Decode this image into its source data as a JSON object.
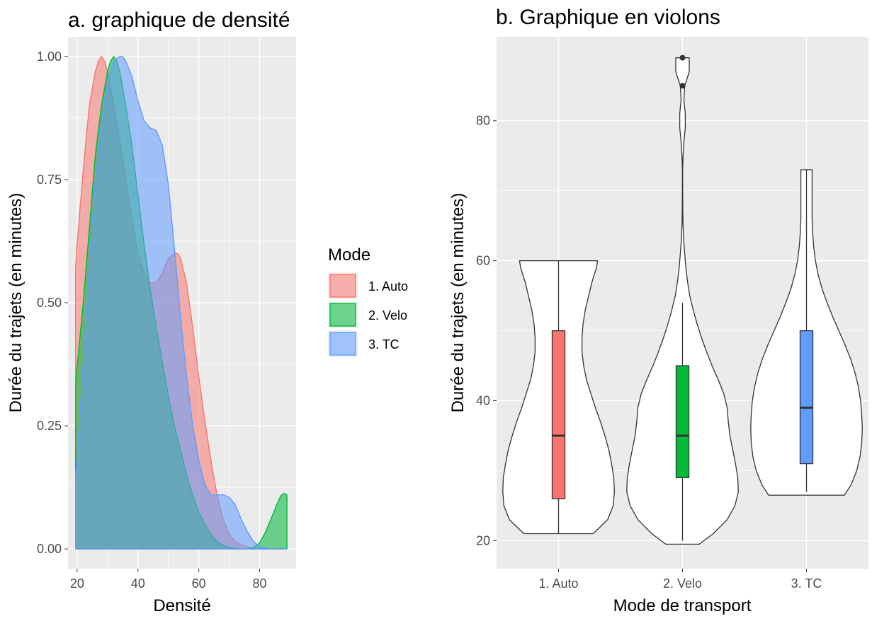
{
  "chart_data": [
    {
      "type": "area",
      "title": "a. graphique de densité",
      "xlabel": "Densité",
      "ylabel": "Durée du trajets (en minutes)",
      "xlim": [
        17,
        92
      ],
      "ylim": [
        -0.04,
        1.04
      ],
      "xticks": [
        20,
        40,
        60,
        80
      ],
      "yticks": [
        0.0,
        0.25,
        0.5,
        0.75,
        1.0
      ],
      "ytick_labels": [
        "0.00",
        "0.25",
        "0.50",
        "0.75",
        "1.00"
      ],
      "grid": true,
      "legend": {
        "title": "Mode",
        "placement": "right",
        "entries": [
          "1. Auto",
          "2. Velo",
          "3. TC"
        ]
      },
      "series": [
        {
          "name": "1. Auto",
          "color": "#F8766D",
          "x": [
            19.5,
            20,
            22,
            24,
            26,
            27,
            28,
            29,
            30,
            32,
            34,
            36,
            38,
            40,
            42,
            44,
            46,
            48,
            50,
            52,
            53,
            54,
            56,
            58,
            60,
            62,
            64,
            66,
            68,
            70,
            72,
            74,
            76,
            78,
            80,
            85,
            89
          ],
          "y": [
            0.57,
            0.62,
            0.77,
            0.9,
            0.97,
            0.99,
            1.0,
            0.99,
            0.97,
            0.9,
            0.83,
            0.75,
            0.67,
            0.6,
            0.56,
            0.54,
            0.54,
            0.56,
            0.59,
            0.6,
            0.6,
            0.59,
            0.54,
            0.45,
            0.35,
            0.26,
            0.18,
            0.11,
            0.06,
            0.03,
            0.015,
            0.008,
            0.004,
            0.002,
            0.001,
            0.0,
            0.0
          ]
        },
        {
          "name": "2. Velo",
          "color": "#00BA38",
          "x": [
            19.5,
            20,
            22,
            24,
            26,
            28,
            30,
            31,
            32,
            33,
            34,
            36,
            38,
            40,
            42,
            44,
            46,
            48,
            50,
            52,
            54,
            56,
            58,
            60,
            62,
            64,
            66,
            68,
            70,
            72,
            74,
            76,
            78,
            80,
            82,
            84,
            86,
            87,
            88,
            89
          ],
          "y": [
            0.33,
            0.37,
            0.5,
            0.65,
            0.8,
            0.9,
            0.97,
            0.99,
            1.0,
            0.99,
            0.97,
            0.9,
            0.82,
            0.72,
            0.62,
            0.53,
            0.45,
            0.38,
            0.31,
            0.25,
            0.2,
            0.15,
            0.11,
            0.075,
            0.05,
            0.03,
            0.015,
            0.007,
            0.003,
            0.001,
            0.0,
            0.0,
            0.003,
            0.012,
            0.035,
            0.065,
            0.095,
            0.108,
            0.113,
            0.11
          ]
        },
        {
          "name": "3. TC",
          "color": "#619CFF",
          "x": [
            19.5,
            20,
            22,
            24,
            26,
            28,
            30,
            32,
            34,
            35,
            36,
            38,
            40,
            42,
            44,
            46,
            48,
            50,
            52,
            54,
            56,
            58,
            60,
            62,
            64,
            66,
            68,
            70,
            72,
            74,
            76,
            78,
            80,
            84,
            89
          ],
          "y": [
            0.15,
            0.18,
            0.38,
            0.58,
            0.75,
            0.87,
            0.95,
            0.99,
            1.0,
            1.0,
            0.99,
            0.96,
            0.91,
            0.87,
            0.855,
            0.85,
            0.82,
            0.74,
            0.61,
            0.47,
            0.35,
            0.25,
            0.18,
            0.13,
            0.11,
            0.11,
            0.11,
            0.105,
            0.09,
            0.06,
            0.035,
            0.015,
            0.005,
            0.0,
            0.0
          ]
        }
      ]
    },
    {
      "type": "violin",
      "title": "b. Graphique en violons",
      "xlabel": "Mode de transport",
      "ylabel": "Durée du trajets (en minutes)",
      "categories": [
        "1. Auto",
        "2. Velo",
        "3. TC"
      ],
      "ylim": [
        16,
        92
      ],
      "yticks": [
        20,
        40,
        60,
        80
      ],
      "grid": true,
      "series": [
        {
          "name": "1. Auto",
          "color": "#F8766D",
          "box": {
            "q1": 26,
            "median": 35,
            "q3": 50,
            "whisker_low": 21,
            "whisker_high": 60
          },
          "outliers": [],
          "profile_y": [
            21,
            22,
            23,
            25,
            27,
            29,
            31,
            33,
            35,
            37,
            39,
            41,
            43,
            45,
            47,
            49,
            51,
            53,
            55,
            57,
            58,
            59,
            60
          ],
          "profile_w": [
            0.62,
            0.75,
            0.88,
            0.98,
            1.0,
            0.99,
            0.95,
            0.9,
            0.83,
            0.75,
            0.66,
            0.58,
            0.5,
            0.45,
            0.42,
            0.42,
            0.44,
            0.48,
            0.54,
            0.6,
            0.64,
            0.68,
            0.7
          ]
        },
        {
          "name": "2. Velo",
          "color": "#00BA38",
          "box": {
            "q1": 29,
            "median": 35,
            "q3": 45,
            "whisker_low": 20,
            "whisker_high": 54
          },
          "outliers": [
            85,
            89
          ],
          "profile_y": [
            19.5,
            21,
            23,
            25,
            27,
            29,
            31,
            33,
            35,
            37,
            39,
            41,
            43,
            45,
            47,
            49,
            51,
            53,
            55,
            57,
            59,
            61,
            63,
            65,
            67,
            70,
            73,
            75,
            77,
            79,
            81,
            83,
            85,
            87,
            89
          ],
          "profile_w": [
            0.3,
            0.55,
            0.8,
            0.94,
            1.0,
            0.99,
            0.95,
            0.9,
            0.85,
            0.82,
            0.8,
            0.74,
            0.64,
            0.53,
            0.43,
            0.34,
            0.26,
            0.19,
            0.13,
            0.09,
            0.06,
            0.04,
            0.02,
            0.01,
            0.005,
            0.002,
            0.003,
            0.01,
            0.025,
            0.05,
            0.05,
            0.025,
            0.04,
            0.12,
            0.12
          ]
        },
        {
          "name": "3. TC",
          "color": "#619CFF",
          "box": {
            "q1": 31,
            "median": 39,
            "q3": 50,
            "whisker_low": 27,
            "whisker_high": 73
          },
          "outliers": [],
          "profile_y": [
            26.5,
            28,
            30,
            32,
            34,
            36,
            38,
            40,
            42,
            44,
            46,
            48,
            50,
            52,
            54,
            56,
            58,
            60,
            62,
            64,
            66,
            68,
            70,
            72,
            73
          ],
          "profile_w": [
            0.68,
            0.8,
            0.9,
            0.96,
            0.99,
            1.0,
            0.99,
            0.97,
            0.93,
            0.87,
            0.79,
            0.69,
            0.58,
            0.47,
            0.37,
            0.28,
            0.21,
            0.16,
            0.13,
            0.11,
            0.1,
            0.1,
            0.1,
            0.1,
            0.1
          ]
        }
      ]
    }
  ]
}
